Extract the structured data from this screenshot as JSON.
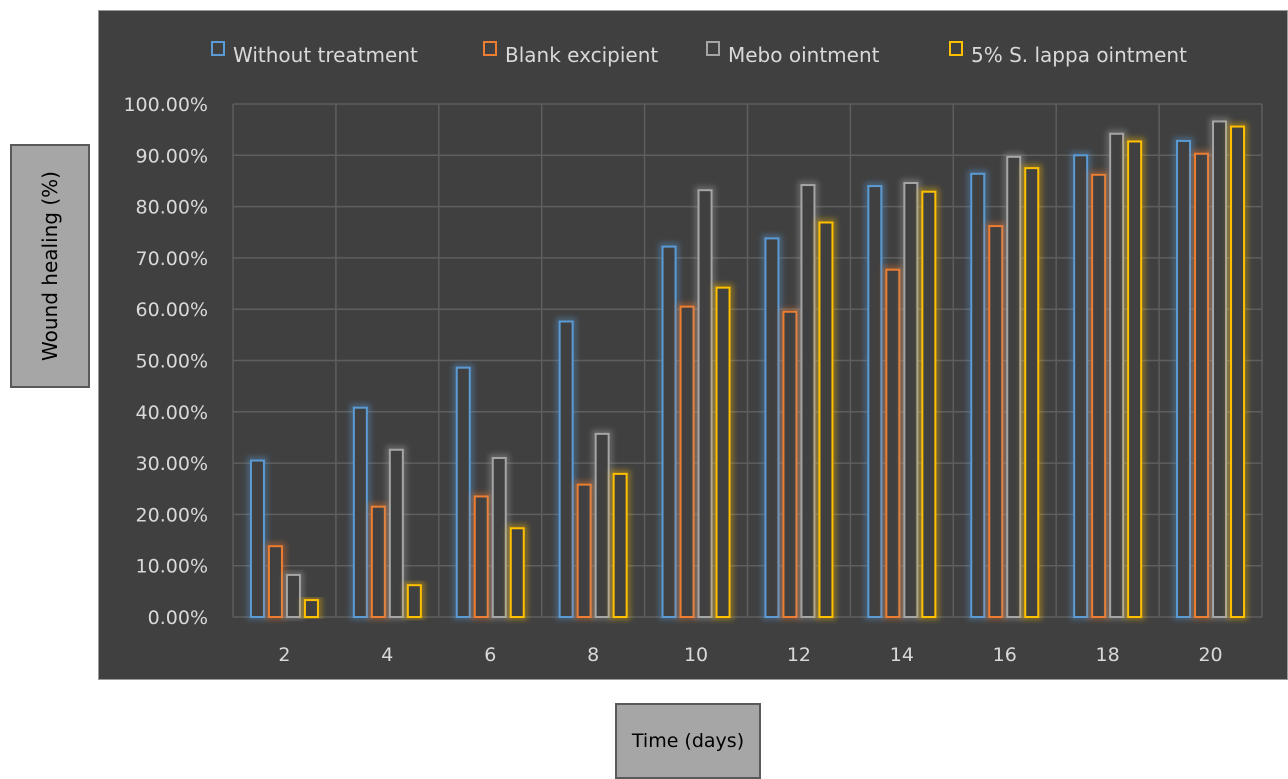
{
  "chart_data": {
    "type": "bar",
    "categories": [
      "2",
      "4",
      "6",
      "8",
      "10",
      "12",
      "14",
      "16",
      "18",
      "20"
    ],
    "series": [
      {
        "name": "Without treatment",
        "color": "#5b9bd5",
        "values": [
          30.5,
          40.8,
          48.6,
          57.6,
          72.2,
          73.8,
          84.0,
          86.4,
          90.0,
          92.8
        ]
      },
      {
        "name": "Blank excipient",
        "color": "#ed7d31",
        "values": [
          13.8,
          21.5,
          23.5,
          25.8,
          60.5,
          59.5,
          67.7,
          76.2,
          86.2,
          90.3
        ]
      },
      {
        "name": "Mebo ointment",
        "color": "#a5a5a5",
        "values": [
          8.2,
          32.6,
          31.0,
          35.7,
          83.2,
          84.2,
          84.6,
          89.7,
          94.2,
          96.6
        ]
      },
      {
        "name": "5% S. lappa ointment",
        "color": "#ffc000",
        "values": [
          3.3,
          6.2,
          17.3,
          27.9,
          64.2,
          76.9,
          82.9,
          87.5,
          92.7,
          95.6
        ]
      }
    ],
    "yticks": [
      "0.00%",
      "10.00%",
      "20.00%",
      "30.00%",
      "40.00%",
      "50.00%",
      "60.00%",
      "70.00%",
      "80.00%",
      "90.00%",
      "100.00%"
    ],
    "ylim": [
      0,
      100
    ],
    "xlabel": "Time (days)",
    "ylabel": "Wound healing (%)",
    "grid": true,
    "legend_position": "top",
    "background_color": "#404040"
  }
}
